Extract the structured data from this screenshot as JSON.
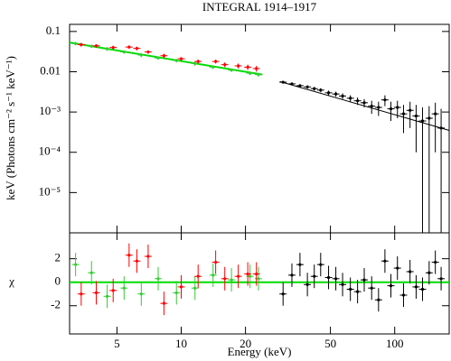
{
  "chart_data": [
    {
      "type": "scatter",
      "title": "INTEGRAL 1914–1917",
      "ylabel": "keV (Photons cm⁻² s⁻¹ keV⁻¹)",
      "xscale": "log",
      "yscale": "log",
      "xlim": [
        3,
        180
      ],
      "ylim": [
        1e-06,
        0.15
      ],
      "yticks": [
        0.1,
        0.01,
        {
          "value": 0.001,
          "label": "10⁻³"
        },
        {
          "value": 0.0001,
          "label": "10⁻⁴"
        },
        {
          "value": 1e-05,
          "label": "10⁻⁵"
        }
      ],
      "series": [
        {
          "color": "#00dd00",
          "line": true,
          "x": [
            3,
            24
          ],
          "values": [
            0.053,
            0.0085
          ]
        },
        {
          "color": "#000000",
          "line": true,
          "x": [
            29,
            180
          ],
          "values": [
            0.0057,
            0.00035
          ]
        },
        {
          "color": "#33cc33",
          "x": [
            3.2,
            3.8,
            4.5,
            5.4,
            6.5,
            7.8,
            9.5,
            11.6,
            14.1,
            17.2,
            21,
            23
          ],
          "values": [
            0.05,
            0.043,
            0.037,
            0.031,
            0.026,
            0.022,
            0.019,
            0.016,
            0.013,
            0.011,
            0.0092,
            0.0085
          ],
          "errors": [
            0.005,
            0.004,
            0.004,
            0.003,
            0.003,
            0.002,
            0.002,
            0.002,
            0.0013,
            0.0011,
            0.0009,
            0.0009
          ]
        },
        {
          "color": "#ff0000",
          "x": [
            3.4,
            4.0,
            4.8,
            5.7,
            6.2,
            7.0,
            8.3,
            10,
            12,
            14.5,
            16,
            18.5,
            20.5,
            22.5
          ],
          "values": [
            0.047,
            0.044,
            0.04,
            0.041,
            0.038,
            0.031,
            0.025,
            0.021,
            0.018,
            0.018,
            0.015,
            0.014,
            0.013,
            0.012
          ],
          "errors": [
            0.005,
            0.004,
            0.004,
            0.004,
            0.004,
            0.003,
            0.003,
            0.002,
            0.002,
            0.002,
            0.002,
            0.002,
            0.002,
            0.002
          ]
        },
        {
          "color": "#000000",
          "x": [
            30,
            33,
            36,
            39,
            42,
            45,
            49,
            53,
            57,
            62,
            67,
            72,
            78,
            84,
            90,
            96,
            103,
            110,
            118,
            126,
            135,
            145,
            155,
            165
          ],
          "values": [
            0.0055,
            0.005,
            0.0045,
            0.0042,
            0.0038,
            0.0035,
            0.003,
            0.0028,
            0.0025,
            0.0022,
            0.0019,
            0.0017,
            0.0014,
            0.0013,
            0.002,
            0.0012,
            0.0013,
            0.0009,
            0.0011,
            0.0008,
            0.0006,
            0.0007,
            0.0009,
            0.0004
          ],
          "errors": [
            0.0004,
            0.0004,
            0.0004,
            0.0004,
            0.0004,
            0.0004,
            0.0004,
            0.0004,
            0.0004,
            0.0004,
            0.0004,
            0.0004,
            0.0005,
            0.0005,
            0.0006,
            0.0006,
            0.0006,
            0.0006,
            0.0007,
            0.0007,
            0.0007,
            0.0007,
            0.0008,
            0.0008
          ]
        }
      ]
    },
    {
      "type": "scatter",
      "xlabel": "Energy (keV)",
      "ylabel": "χ",
      "xscale": "log",
      "xlim": [
        3,
        180
      ],
      "ylim": [
        -4.4,
        4.2
      ],
      "xticks": [
        5,
        10,
        20,
        50,
        100
      ],
      "yticks": [
        -2,
        0,
        2
      ],
      "series": [
        {
          "color": "#00dd00",
          "line": true,
          "x": [
            3,
            180
          ],
          "values": [
            0,
            0
          ]
        },
        {
          "color": "#33cc33",
          "x": [
            3.2,
            3.8,
            4.5,
            5.4,
            6.5,
            7.8,
            9.5,
            11.6,
            14.1,
            17.2,
            21,
            23
          ],
          "values": [
            1.5,
            0.8,
            -1.2,
            -0.5,
            -1,
            0.3,
            -0.9,
            -0.5,
            0.6,
            0.2,
            0.5,
            0.3
          ],
          "errors": [
            1,
            1,
            1,
            1,
            1,
            1,
            1,
            1,
            1,
            1,
            1,
            1
          ]
        },
        {
          "color": "#ff0000",
          "x": [
            3.4,
            4.0,
            4.8,
            5.7,
            6.2,
            7.0,
            8.3,
            10,
            12,
            14.5,
            16,
            18.5,
            20.5,
            22.5
          ],
          "values": [
            -1,
            -0.9,
            -0.7,
            2.3,
            1.8,
            2.2,
            -1.8,
            -0.4,
            0.5,
            1.7,
            0.3,
            0.5,
            0.7,
            0.7
          ],
          "errors": [
            1,
            1,
            1,
            1,
            1,
            1,
            1,
            1,
            1,
            1,
            1,
            1,
            1,
            1
          ]
        },
        {
          "color": "#000000",
          "x": [
            30,
            33,
            36,
            39,
            42,
            45,
            49,
            53,
            57,
            62,
            67,
            72,
            78,
            84,
            90,
            96,
            103,
            110,
            118,
            126,
            135,
            145,
            155,
            165
          ],
          "values": [
            -1,
            0.6,
            1.5,
            -0.2,
            0.5,
            1.5,
            0.4,
            0.3,
            -0.2,
            -0.6,
            -0.8,
            0.2,
            -0.5,
            -1.5,
            1.8,
            -0.3,
            1.2,
            -1.1,
            0.9,
            -0.4,
            -0.6,
            0.8,
            1.7,
            0.3
          ],
          "errors": [
            1,
            1,
            1,
            1,
            1,
            1,
            1,
            1,
            1,
            1,
            1,
            1,
            1,
            1,
            1,
            1,
            1,
            1,
            1,
            1,
            1,
            1,
            1,
            1
          ]
        }
      ]
    }
  ]
}
